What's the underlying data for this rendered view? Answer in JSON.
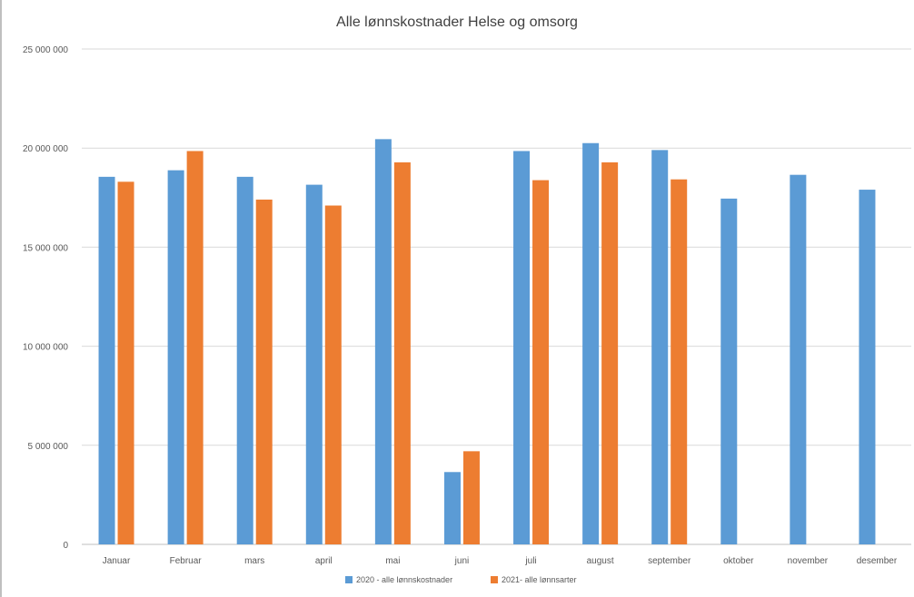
{
  "chart_data": {
    "type": "bar",
    "title": "Alle lønnskostnader Helse og omsorg",
    "categories": [
      "Januar",
      "Februar",
      "mars",
      "april",
      "mai",
      "juni",
      "juli",
      "august",
      "september",
      "oktober",
      "november",
      "desember"
    ],
    "series": [
      {
        "name": "2020 - alle lønnskostnader",
        "color": "#5b9bd5",
        "values": [
          18550000,
          18880000,
          18550000,
          18150000,
          20450000,
          3650000,
          19850000,
          20250000,
          19900000,
          17450000,
          18650000,
          17900000
        ]
      },
      {
        "name": "2021- alle lønnsarter",
        "color": "#ed7d31",
        "values": [
          18300000,
          19850000,
          17400000,
          17100000,
          19280000,
          4700000,
          18380000,
          19280000,
          18420000,
          null,
          null,
          null
        ]
      }
    ],
    "y_ticks": [
      0,
      5000000,
      10000000,
      15000000,
      20000000,
      25000000
    ],
    "y_tick_labels": [
      "0",
      "5 000 000",
      "10 000 000",
      "15 000 000",
      "20 000 000",
      "25 000 000"
    ],
    "ylim": [
      0,
      25000000
    ],
    "grid": true,
    "legend_position": "bottom"
  }
}
